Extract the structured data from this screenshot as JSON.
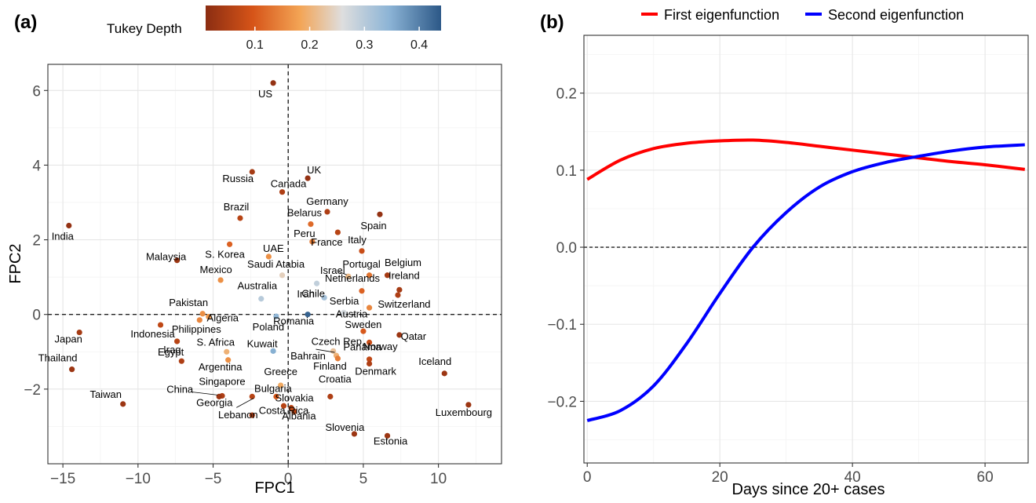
{
  "colors": {
    "scale": [
      "#8b2d12",
      "#d65418",
      "#f3a455",
      "#dedede",
      "#8cb4d6",
      "#2c5887"
    ],
    "first_eigen": "#ff0000",
    "second_eigen": "#0000ff"
  },
  "chart_data": [
    {
      "panel": "(a)",
      "type": "scatter",
      "xlabel": "FPC1",
      "ylabel": "FPC2",
      "xlim": [
        -16,
        14.2
      ],
      "ylim": [
        -4,
        6.7
      ],
      "xticks": [
        -15,
        -10,
        -5,
        0,
        5,
        10
      ],
      "yticks": [
        -2,
        0,
        2,
        4,
        6
      ],
      "grid": true,
      "reference_lines": {
        "x": 0,
        "y": 0,
        "style": "dashed"
      },
      "colorbar": {
        "title": "Tukey Depth",
        "range": [
          0.01,
          0.44
        ],
        "ticks": [
          0.1,
          0.2,
          0.3,
          0.4
        ],
        "position": "top"
      },
      "points": [
        {
          "label": "US",
          "x": -1.0,
          "y": 6.2,
          "depth": 0.02
        },
        {
          "label": "UK",
          "x": 1.3,
          "y": 3.65,
          "depth": 0.02
        },
        {
          "label": "Russia",
          "x": -2.4,
          "y": 3.82,
          "depth": 0.04
        },
        {
          "label": "Canada",
          "x": -0.4,
          "y": 3.28,
          "depth": 0.05
        },
        {
          "label": "Germany",
          "x": 2.6,
          "y": 2.75,
          "depth": 0.05
        },
        {
          "label": "Spain",
          "x": 6.1,
          "y": 2.68,
          "depth": 0.02
        },
        {
          "label": "Brazil",
          "x": -3.2,
          "y": 2.58,
          "depth": 0.06
        },
        {
          "label": "Belarus",
          "x": 1.5,
          "y": 2.42,
          "depth": 0.12
        },
        {
          "label": "France",
          "x": 3.3,
          "y": 2.2,
          "depth": 0.06
        },
        {
          "label": "India",
          "x": -14.6,
          "y": 2.38,
          "depth": 0.02
        },
        {
          "label": "S. Korea",
          "x": -3.9,
          "y": 1.88,
          "depth": 0.11
        },
        {
          "label": "Peru",
          "x": 1.6,
          "y": 1.95,
          "depth": 0.14
        },
        {
          "label": "Italy",
          "x": 4.9,
          "y": 1.7,
          "depth": 0.08
        },
        {
          "label": "Malaysia",
          "x": -7.4,
          "y": 1.45,
          "depth": 0.03
        },
        {
          "label": "UAE",
          "x": -1.3,
          "y": 1.55,
          "depth": 0.16
        },
        {
          "label": "Mexico",
          "x": -4.5,
          "y": 0.92,
          "depth": 0.16
        },
        {
          "label": "Saudi Atabia",
          "x": -0.4,
          "y": 1.05,
          "depth": 0.24
        },
        {
          "label": "Israel",
          "x": 4.0,
          "y": 1.02,
          "depth": 0.21
        },
        {
          "label": "Portugal",
          "x": 5.4,
          "y": 1.05,
          "depth": 0.13
        },
        {
          "label": "Belgium",
          "x": 6.6,
          "y": 1.05,
          "depth": 0.04
        },
        {
          "label": "Iran",
          "x": 1.9,
          "y": 0.83,
          "depth": 0.29
        },
        {
          "label": "Netherlands",
          "x": 4.9,
          "y": 0.63,
          "depth": 0.11
        },
        {
          "label": "Ireland",
          "x": 7.4,
          "y": 0.66,
          "depth": 0.04
        },
        {
          "label": "Switzerland",
          "x": 7.3,
          "y": 0.52,
          "depth": 0.05
        },
        {
          "label": "Australia",
          "x": -1.8,
          "y": 0.42,
          "depth": 0.3
        },
        {
          "label": "Chile",
          "x": 2.4,
          "y": 0.45,
          "depth": 0.32
        },
        {
          "label": "Serbia",
          "x": 5.4,
          "y": 0.18,
          "depth": 0.15
        },
        {
          "label": "Pakistan",
          "x": -5.7,
          "y": 0.02,
          "depth": 0.16
        },
        {
          "label": "Algeria",
          "x": -5.3,
          "y": -0.06,
          "depth": 0.17
        },
        {
          "label": "Austria",
          "x": 3.7,
          "y": 0.05,
          "depth": 0.27
        },
        {
          "label": "Philippines",
          "x": -5.9,
          "y": -0.15,
          "depth": 0.15
        },
        {
          "label": "Poland",
          "x": -0.8,
          "y": -0.05,
          "depth": 0.34
        },
        {
          "label": "Romania",
          "x": 1.3,
          "y": 0.0,
          "depth": 0.43
        },
        {
          "label": "Indonesia",
          "x": -8.5,
          "y": -0.28,
          "depth": 0.07
        },
        {
          "label": "Sweden",
          "x": 5.0,
          "y": -0.45,
          "depth": 0.1
        },
        {
          "label": "Japan",
          "x": -13.9,
          "y": -0.48,
          "depth": 0.04
        },
        {
          "label": "Panama",
          "x": 5.4,
          "y": -0.75,
          "depth": 0.08
        },
        {
          "label": "Qatar",
          "x": 7.4,
          "y": -0.55,
          "depth": 0.03
        },
        {
          "label": "Egypt",
          "x": -7.4,
          "y": -0.72,
          "depth": 0.06
        },
        {
          "label": "S. Africa",
          "x": -4.1,
          "y": -1.0,
          "depth": 0.2
        },
        {
          "label": "Kuwait",
          "x": -1.0,
          "y": -0.98,
          "depth": 0.35
        },
        {
          "label": "Czech Rep.",
          "x": 3.0,
          "y": -0.98,
          "depth": 0.22
        },
        {
          "label": "Bahrain",
          "x": 3.2,
          "y": -1.1,
          "depth": 0.2
        },
        {
          "label": "Argentina",
          "x": -4.0,
          "y": -1.22,
          "depth": 0.16
        },
        {
          "label": "Finland",
          "x": 3.3,
          "y": -1.18,
          "depth": 0.14
        },
        {
          "label": "Norway",
          "x": 5.4,
          "y": -1.2,
          "depth": 0.07
        },
        {
          "label": "Denmark",
          "x": 5.4,
          "y": -1.32,
          "depth": 0.05
        },
        {
          "label": "Iraq",
          "x": -7.1,
          "y": -1.25,
          "depth": 0.05
        },
        {
          "label": "Thailand",
          "x": -14.4,
          "y": -1.47,
          "depth": 0.03
        },
        {
          "label": "Iceland",
          "x": 10.4,
          "y": -1.58,
          "depth": 0.03
        },
        {
          "label": "Greece",
          "x": -0.5,
          "y": -1.9,
          "depth": 0.19
        },
        {
          "label": "Singapore",
          "x": -4.4,
          "y": -2.18,
          "depth": 0.05
        },
        {
          "label": "China",
          "x": -4.6,
          "y": -2.2,
          "depth": 0.03
        },
        {
          "label": "Georgia",
          "x": -2.4,
          "y": -2.2,
          "depth": 0.06
        },
        {
          "label": "Bulgaria",
          "x": -0.8,
          "y": -2.2,
          "depth": 0.1
        },
        {
          "label": "Croatia",
          "x": 2.8,
          "y": -2.2,
          "depth": 0.05
        },
        {
          "label": "Taiwan",
          "x": -11.0,
          "y": -2.4,
          "depth": 0.03
        },
        {
          "label": "Costa Rica",
          "x": -0.3,
          "y": -2.45,
          "depth": 0.06
        },
        {
          "label": "Slovakia",
          "x": 0.2,
          "y": -2.5,
          "depth": 0.07
        },
        {
          "label": "Albania",
          "x": 0.4,
          "y": -2.6,
          "depth": 0.06
        },
        {
          "label": "Luxembourg",
          "x": 12.0,
          "y": -2.42,
          "depth": 0.03
        },
        {
          "label": "Lebanon",
          "x": -2.4,
          "y": -2.7,
          "depth": 0.05
        },
        {
          "label": "Slovenia",
          "x": 4.4,
          "y": -3.2,
          "depth": 0.03
        },
        {
          "label": "Estonia",
          "x": 6.6,
          "y": -3.25,
          "depth": 0.03
        }
      ]
    },
    {
      "panel": "(b)",
      "type": "line",
      "xlabel": "Days since 20+ cases",
      "ylabel": "",
      "xlim": [
        -0.5,
        66.5
      ],
      "ylim": [
        -0.28,
        0.275
      ],
      "xticks": [
        0,
        20,
        40,
        60
      ],
      "yticks": [
        -0.2,
        -0.1,
        0.0,
        0.1,
        0.2
      ],
      "ytick_labels": [
        "−0.2",
        "−0.1",
        "0.0",
        "0.1",
        "0.2"
      ],
      "xtick_labels": [
        "0",
        "20",
        "40",
        "60"
      ],
      "grid": true,
      "reference_lines": {
        "y": 0,
        "style": "dashed"
      },
      "legend": {
        "position": "top"
      },
      "x": [
        0,
        5,
        10,
        15,
        20,
        25,
        30,
        35,
        40,
        45,
        50,
        55,
        60,
        66
      ],
      "series": [
        {
          "name": "First eigenfunction",
          "color": "#ff0000",
          "values": [
            0.088,
            0.113,
            0.128,
            0.135,
            0.138,
            0.139,
            0.136,
            0.131,
            0.126,
            0.121,
            0.116,
            0.111,
            0.107,
            0.101
          ]
        },
        {
          "name": "Second eigenfunction",
          "color": "#0000ff",
          "values": [
            -0.225,
            -0.212,
            -0.18,
            -0.125,
            -0.06,
            0.0,
            0.045,
            0.078,
            0.098,
            0.11,
            0.118,
            0.125,
            0.13,
            0.133
          ]
        }
      ]
    }
  ]
}
